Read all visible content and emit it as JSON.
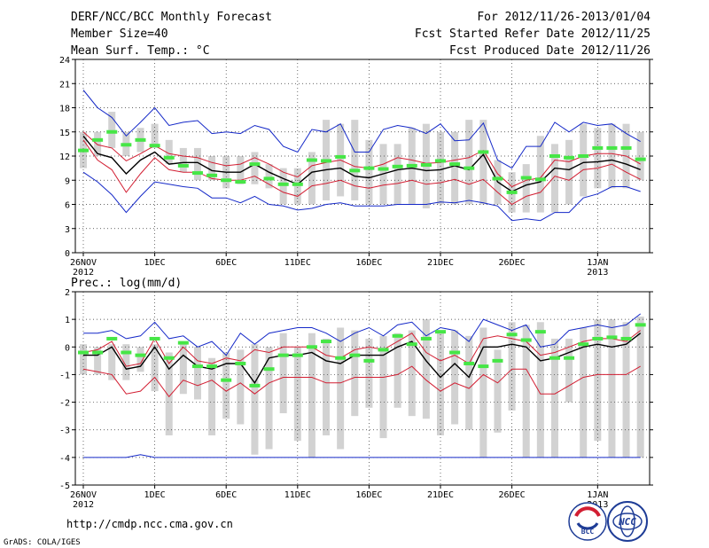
{
  "header": {
    "title": "DERF/NCC/BCC Monthly Forecast",
    "member_size": "Member Size=40",
    "variable": "Mean Surf. Temp.: °C",
    "period": "For 2012/11/26-2013/01/04",
    "started": "Fcst Started Refer Date 2012/11/25",
    "produced": "Fcst Produced Date 2012/11/26"
  },
  "footer": {
    "url": "http://cmdp.ncc.cma.gov.cn",
    "credit": "GrADS: COLA/IGES",
    "logo_bcc": "BCC",
    "logo_ncc": "NCC"
  },
  "colors": {
    "bar": "#d2d2d2",
    "mean": "#000000",
    "ens_line": "#d21e32",
    "spread": "#1428c8",
    "obs": "#46e646",
    "grid": "#333333"
  },
  "chart_data": [
    {
      "type": "line",
      "title": "Mean Surf. Temp.: °C",
      "ylim": [
        0,
        24
      ],
      "yticks": [
        0,
        3,
        6,
        9,
        12,
        15,
        18,
        21,
        24
      ],
      "xlabels": [
        {
          "day": 0,
          "line1": "26NOV",
          "line2": "2012"
        },
        {
          "day": 5,
          "line1": "1DEC",
          "line2": ""
        },
        {
          "day": 10,
          "line1": "6DEC",
          "line2": ""
        },
        {
          "day": 15,
          "line1": "11DEC",
          "line2": ""
        },
        {
          "day": 20,
          "line1": "16DEC",
          "line2": ""
        },
        {
          "day": 25,
          "line1": "21DEC",
          "line2": ""
        },
        {
          "day": 30,
          "line1": "26DEC",
          "line2": ""
        },
        {
          "day": 36,
          "line1": "1JAN",
          "line2": "2013"
        }
      ],
      "days": 40,
      "box_low": [
        10.5,
        12,
        13,
        12,
        12.5,
        13,
        11,
        10,
        9,
        9,
        8,
        8.5,
        8.5,
        8,
        6,
        6,
        6,
        6.5,
        7,
        6.5,
        6,
        6,
        6,
        6,
        5.5,
        6,
        6,
        6,
        6,
        6,
        5,
        5,
        5,
        5,
        6,
        7,
        8,
        8,
        8,
        9
      ],
      "box_high": [
        15,
        15,
        17.5,
        15,
        15.5,
        16,
        14,
        13,
        13,
        12,
        12,
        12,
        12.5,
        11,
        10.5,
        10.5,
        12.5,
        16.5,
        16,
        16.5,
        14,
        13.5,
        13.5,
        15.5,
        16,
        15,
        15,
        16.5,
        16.5,
        11.5,
        10,
        11,
        14.5,
        13.5,
        14,
        16,
        15.5,
        16,
        16,
        15
      ],
      "series": [
        {
          "name": "Upper spread",
          "role": "spread",
          "values": [
            20.2,
            18,
            16.8,
            14.5,
            16.2,
            18,
            15.8,
            16.2,
            16.4,
            14.8,
            15,
            14.8,
            15.8,
            15.3,
            13.2,
            12.5,
            15.3,
            15,
            16,
            12.5,
            12.5,
            15.3,
            15.8,
            15.5,
            14.8,
            16,
            13.9,
            14,
            16.1,
            11.5,
            10.5,
            13.2,
            13.2,
            16.2,
            15,
            16.2,
            15.8,
            16,
            14.8,
            13.8
          ]
        },
        {
          "name": "Ensemble upper",
          "role": "ens",
          "values": [
            15,
            13.4,
            13,
            11.4,
            12.3,
            13.3,
            12.3,
            12,
            11.8,
            11.2,
            10.8,
            11,
            11.8,
            11,
            10,
            9.4,
            10.8,
            11.2,
            11.5,
            10.7,
            10.5,
            11,
            11.8,
            11.5,
            11.1,
            11.2,
            11.5,
            11.8,
            12.7,
            9.8,
            8.2,
            9,
            9.3,
            11.5,
            11.3,
            12,
            12.3,
            12.3,
            12,
            11
          ]
        },
        {
          "name": "Ensemble mean",
          "role": "mean",
          "values": [
            14.5,
            12.3,
            11.8,
            9.8,
            11.5,
            12.5,
            11,
            11.2,
            11.2,
            10.2,
            10,
            10,
            11,
            10,
            9.2,
            8.5,
            10,
            10.3,
            10.5,
            9.5,
            9.3,
            9.8,
            10.3,
            10.5,
            10.2,
            10.3,
            10.8,
            10.3,
            12.2,
            8.8,
            7.6,
            8.4,
            8.8,
            10.5,
            10.3,
            11.2,
            11.3,
            11.5,
            11,
            10.3
          ]
        },
        {
          "name": "Ensemble lower",
          "role": "ens",
          "values": [
            14,
            11.5,
            10.3,
            7.5,
            9.8,
            11.8,
            10.3,
            10,
            10,
            9.2,
            9,
            9,
            9.5,
            8.5,
            7.5,
            7,
            8.3,
            8.6,
            9,
            8.3,
            8,
            8.4,
            8.6,
            9,
            8.5,
            8.7,
            9.1,
            8.5,
            9.1,
            7.5,
            6,
            7,
            7.5,
            9.5,
            9,
            10.3,
            10.5,
            11,
            10,
            9.1
          ]
        },
        {
          "name": "Lower spread",
          "role": "spread",
          "values": [
            10,
            8.8,
            7.2,
            5,
            7,
            8.8,
            8.5,
            8.2,
            8,
            6.8,
            6.8,
            6.2,
            7,
            6,
            5.8,
            5.3,
            5.5,
            6,
            6.2,
            5.8,
            5.8,
            5.8,
            6,
            6,
            6,
            6.3,
            6.2,
            6.5,
            6.2,
            5.8,
            4,
            4.2,
            4,
            5,
            5,
            6.8,
            7.3,
            8.2,
            8.2,
            7.6
          ]
        }
      ],
      "obs": [
        12.7,
        14,
        15,
        13.4,
        14,
        13.3,
        11.8,
        10.8,
        9.9,
        9.6,
        9,
        8.8,
        11,
        9.2,
        8.5,
        8.5,
        11.5,
        11.4,
        11.9,
        10.2,
        10.5,
        10.4,
        10.7,
        10.8,
        10.9,
        11.4,
        11,
        10.5,
        12.5,
        9.2,
        7.5,
        9.3,
        9.1,
        12,
        11.8,
        12,
        13,
        13,
        13,
        11.6
      ]
    },
    {
      "type": "line",
      "title": "Prec.: log(mm/d)",
      "ylim": [
        -5,
        2
      ],
      "yticks": [
        -5,
        -4,
        -3,
        -2,
        -1,
        0,
        1,
        2
      ],
      "xlabels": [
        {
          "day": 0,
          "line1": "26NOV",
          "line2": "2012"
        },
        {
          "day": 5,
          "line1": "1DEC",
          "line2": ""
        },
        {
          "day": 10,
          "line1": "6DEC",
          "line2": ""
        },
        {
          "day": 15,
          "line1": "11DEC",
          "line2": ""
        },
        {
          "day": 20,
          "line1": "16DEC",
          "line2": ""
        },
        {
          "day": 25,
          "line1": "21DEC",
          "line2": ""
        },
        {
          "day": 30,
          "line1": "26DEC",
          "line2": ""
        },
        {
          "day": 36,
          "line1": "1JAN",
          "line2": "2013"
        }
      ],
      "days": 40,
      "box_low": [
        -1,
        -1,
        -1.2,
        -1.2,
        -0.9,
        -1.6,
        -3.2,
        -1.7,
        -1.9,
        -3.2,
        -2.6,
        -2.8,
        -3.9,
        -3.7,
        -2.4,
        -3.4,
        -4,
        -3.2,
        -3.7,
        -2.5,
        -2.2,
        -3.3,
        -2.2,
        -2.5,
        -2.6,
        -3.2,
        -2.8,
        -3,
        -4,
        -3.1,
        -2.3,
        -4,
        -4,
        -4,
        -2,
        -4,
        -3.4,
        -4,
        -4,
        -4
      ],
      "box_high": [
        0.1,
        0,
        0.1,
        0.1,
        0,
        0.1,
        -0.2,
        0.2,
        0,
        -0.4,
        -0.2,
        -0.1,
        0.1,
        0,
        0.5,
        0,
        0.5,
        0.3,
        0.7,
        0.6,
        0.3,
        0.4,
        0.5,
        0.6,
        1,
        0.5,
        0.6,
        0.4,
        0.7,
        -0.1,
        0.9,
        0.8,
        0.9,
        0.3,
        0.3,
        0.7,
        1,
        1,
        0.9,
        1.1
      ],
      "series": [
        {
          "name": "Upper spread",
          "role": "spread",
          "values": [
            0.5,
            0.5,
            0.6,
            0.3,
            0.4,
            0.9,
            0.3,
            0.4,
            0,
            0.2,
            -0.3,
            0.5,
            0.1,
            0.5,
            0.6,
            0.7,
            0.7,
            0.5,
            0.2,
            0.5,
            0.7,
            0.4,
            0.8,
            0.9,
            0.4,
            0.7,
            0.6,
            0.2,
            1,
            0.8,
            0.6,
            0.8,
            0,
            0.1,
            0.6,
            0.7,
            0.8,
            0.7,
            0.8,
            1.2
          ]
        },
        {
          "name": "Ensemble upper",
          "role": "ens",
          "values": [
            -0.2,
            -0.1,
            0.2,
            -0.7,
            -0.6,
            0.3,
            -0.6,
            0,
            -0.5,
            -0.6,
            -0.4,
            -0.5,
            -0.1,
            -0.2,
            0,
            0,
            0,
            -0.3,
            -0.4,
            -0.1,
            0,
            -0.1,
            0.2,
            0.5,
            -0.2,
            -0.5,
            -0.3,
            -0.6,
            0.3,
            0.4,
            0.3,
            0.2,
            -0.3,
            -0.2,
            0,
            0.2,
            0.3,
            0.3,
            0.2,
            0.6
          ]
        },
        {
          "name": "Ensemble mean",
          "role": "mean",
          "values": [
            -0.3,
            -0.3,
            0,
            -0.8,
            -0.7,
            0,
            -0.8,
            -0.3,
            -0.7,
            -0.8,
            -0.6,
            -0.6,
            -1.3,
            -0.4,
            -0.3,
            -0.3,
            -0.2,
            -0.5,
            -0.6,
            -0.3,
            -0.3,
            -0.3,
            0,
            0.2,
            -0.5,
            -1.1,
            -0.6,
            -1.1,
            0,
            0,
            0.1,
            0,
            -0.5,
            -0.4,
            -0.2,
            0,
            0.1,
            0,
            0.1,
            0.5
          ]
        },
        {
          "name": "Ensemble lower",
          "role": "ens",
          "values": [
            -0.8,
            -0.9,
            -1,
            -1.7,
            -1.6,
            -1.1,
            -1.8,
            -1.2,
            -1.4,
            -1.2,
            -1.6,
            -1.3,
            -1.7,
            -1.3,
            -1.1,
            -1.1,
            -1.1,
            -1.3,
            -1.3,
            -1.1,
            -1.1,
            -1.1,
            -1,
            -0.7,
            -1.2,
            -1.6,
            -1.3,
            -1.5,
            -1,
            -1.3,
            -0.8,
            -0.8,
            -1.7,
            -1.7,
            -1.4,
            -1.1,
            -1,
            -1,
            -1,
            -0.7
          ]
        },
        {
          "name": "Lower spread",
          "role": "spread",
          "values": [
            -4,
            -4,
            -4,
            -4,
            -3.9,
            -4,
            -4,
            -4,
            -4,
            -4,
            -4,
            -4,
            -4,
            -4,
            -4,
            -4,
            -4,
            -4,
            -4,
            -4,
            -4,
            -4,
            -4,
            -4,
            -4,
            -4,
            -4,
            -4,
            -4,
            -4,
            -4,
            -4,
            -4,
            -4,
            -4,
            -4,
            -4,
            -4,
            -4,
            -4
          ]
        }
      ],
      "obs": [
        -0.2,
        -0.2,
        0.3,
        -0.2,
        -0.3,
        0.3,
        -0.4,
        0.15,
        -0.7,
        -0.7,
        -1.2,
        -0.6,
        -1.4,
        -0.8,
        -0.3,
        -0.3,
        0,
        0.2,
        -0.4,
        -0.3,
        -0.5,
        -0.1,
        0.4,
        0.1,
        0.3,
        0.55,
        -0.2,
        -0.6,
        -0.7,
        -0.5,
        0.45,
        0.25,
        0.55,
        -0.4,
        -0.4,
        0.1,
        0.3,
        0.35,
        0.3,
        0.8
      ]
    }
  ]
}
